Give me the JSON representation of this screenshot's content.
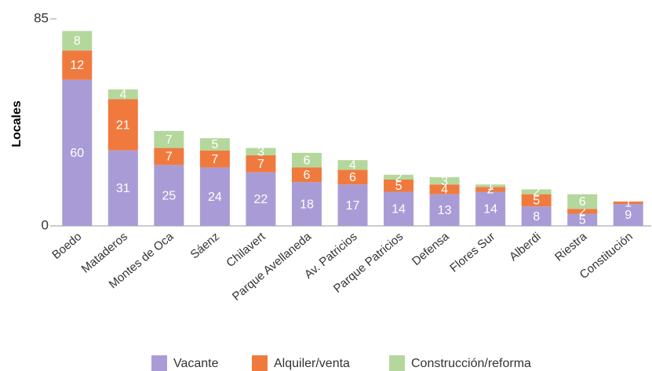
{
  "chart_data": {
    "type": "stacked_bar",
    "y_label": "Locales",
    "categories": [
      "Boedo",
      "Mataderos",
      "Montes de Oca",
      "Sáenz",
      "Chilavert",
      "Parque Avellaneda",
      "Av. Patricios",
      "Parque Patricios",
      "Defensa",
      "Flores Sur",
      "Alberdi",
      "Riestra",
      "Constitución"
    ],
    "series": [
      {
        "name": "Vacante",
        "color": "#a99cd6",
        "values": [
          60,
          31,
          25,
          24,
          22,
          18,
          17,
          14,
          13,
          14,
          8,
          5,
          9
        ]
      },
      {
        "name": "Alquiler/venta",
        "color": "#f07a3e",
        "values": [
          12,
          21,
          7,
          7,
          7,
          6,
          6,
          5,
          4,
          2,
          5,
          2,
          1
        ]
      },
      {
        "name": "Construcción/reforma",
        "color": "#b4d89c",
        "values": [
          8,
          4,
          7,
          5,
          3,
          6,
          4,
          2,
          3,
          1,
          2,
          6,
          null
        ]
      }
    ],
    "ylim": [
      0,
      85
    ],
    "yticks": [
      0,
      85
    ],
    "grid": false,
    "legend": "bottom"
  }
}
